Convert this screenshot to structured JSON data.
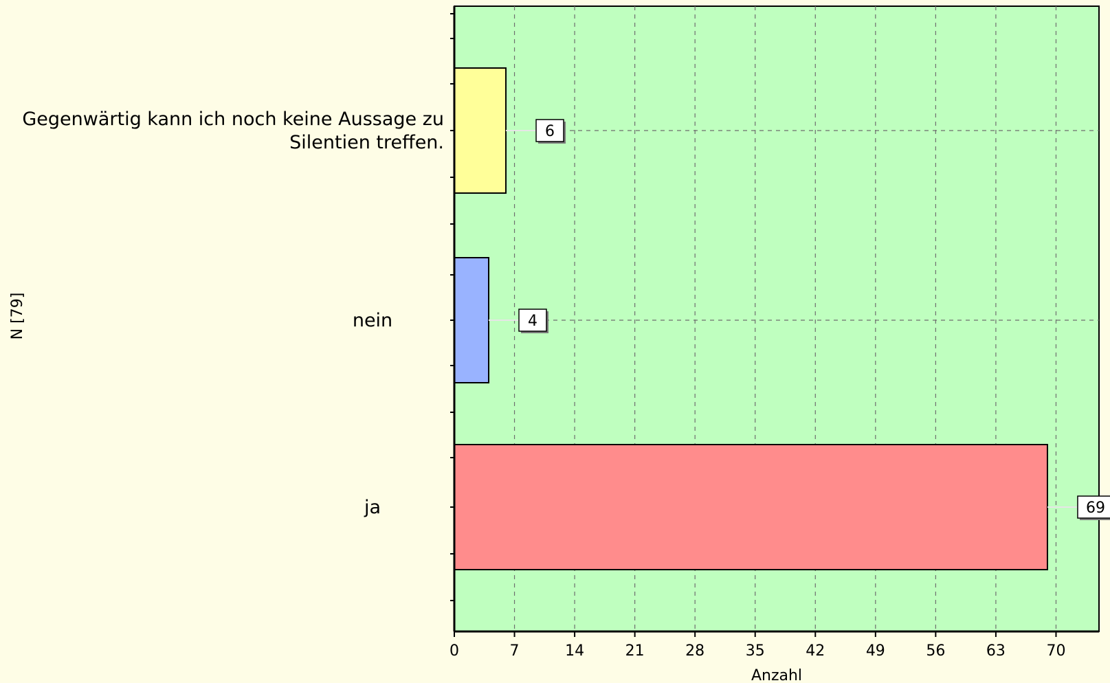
{
  "chart_data": {
    "type": "bar",
    "orientation": "horizontal",
    "categories": [
      "Gegenwärtig kann ich noch keine Aussage zu Silentien treffen.",
      "nein",
      "ja"
    ],
    "category_label_lines": [
      [
        "Gegenwärtig kann ich noch keine Aussage zu",
        "Silentien treffen."
      ],
      [
        "nein"
      ],
      [
        "ja"
      ]
    ],
    "values": [
      6,
      4,
      69
    ],
    "data_labels": [
      "6",
      "4",
      "69"
    ],
    "bar_colors": [
      "#ffff99",
      "#99b3ff",
      "#ff8c8c"
    ],
    "plot_background": "#bfffbf",
    "page_background": "#fefde6",
    "xlabel": "Anzahl",
    "ylabel": "N [79]",
    "xlim": [
      0,
      75
    ],
    "xticks": [
      0,
      7,
      14,
      21,
      28,
      35,
      42,
      49,
      56,
      63,
      70
    ],
    "xtick_labels": [
      "0",
      "7",
      "14",
      "21",
      "28",
      "35",
      "42",
      "49",
      "56",
      "63",
      "70"
    ],
    "grid": true,
    "grid_style": "dashed",
    "legend": "none"
  }
}
